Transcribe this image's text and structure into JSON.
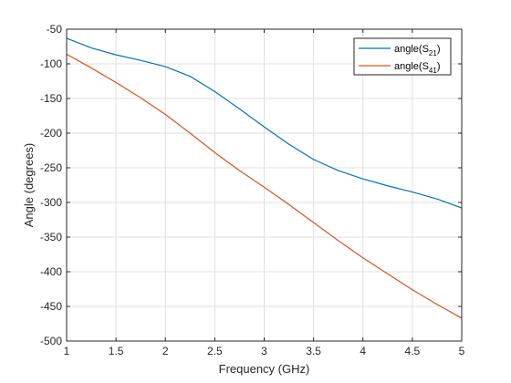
{
  "chart_data": {
    "type": "line",
    "title": "",
    "xlabel": "Frequency (GHz)",
    "ylabel": "Angle (degrees)",
    "xlim": [
      1,
      5
    ],
    "ylim": [
      -500,
      -50
    ],
    "xticks": [
      1,
      1.5,
      2,
      2.5,
      3,
      3.5,
      4,
      4.5,
      5
    ],
    "yticks": [
      -50,
      -100,
      -150,
      -200,
      -250,
      -300,
      -350,
      -400,
      -450,
      -500
    ],
    "grid": true,
    "legend_position": "top-right",
    "series": [
      {
        "name": "angle(S21)",
        "legend_base": "angle(S",
        "legend_sub": "21",
        "legend_tail": ")",
        "color": "#0072BD",
        "x": [
          1.0,
          1.25,
          1.5,
          1.75,
          2.0,
          2.25,
          2.5,
          2.75,
          3.0,
          3.25,
          3.5,
          3.75,
          4.0,
          4.25,
          4.5,
          4.75,
          5.0
        ],
        "y": [
          -63,
          -77,
          -87,
          -95,
          -104,
          -118,
          -140,
          -165,
          -191,
          -216,
          -238,
          -254,
          -266,
          -276,
          -285,
          -295,
          -308
        ]
      },
      {
        "name": "angle(S41)",
        "legend_base": "angle(S",
        "legend_sub": "41",
        "legend_tail": ")",
        "color": "#D95319",
        "x": [
          1.0,
          1.25,
          1.5,
          1.75,
          2.0,
          2.25,
          2.5,
          2.75,
          3.0,
          3.25,
          3.5,
          3.75,
          4.0,
          4.25,
          4.5,
          4.75,
          5.0
        ],
        "y": [
          -86,
          -106,
          -127,
          -149,
          -173,
          -200,
          -228,
          -254,
          -278,
          -303,
          -329,
          -355,
          -380,
          -403,
          -426,
          -447,
          -467
        ]
      }
    ]
  }
}
